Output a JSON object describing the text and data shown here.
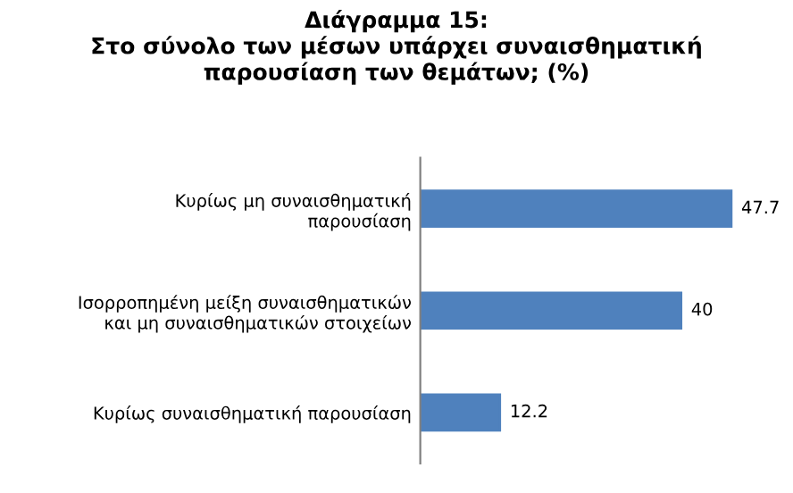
{
  "chart_data": {
    "type": "bar",
    "orientation": "horizontal",
    "title": "Διάγραμμα 15:\nΣτο σύνολο των μέσων υπάρχει συναισθηματική\nπαρουσίαση των θεμάτων; (%)",
    "categories": [
      "Κυρίως μη συναισθηματική\nπαρουσίαση",
      "Ισορροπημένη μείξη συναισθηματικών\nκαι μη συναισθηματικών στοιχείων",
      "Κυρίως συναισθηματική παρουσίαση"
    ],
    "values": [
      47.7,
      40,
      12.2
    ],
    "color": "#4f81bd",
    "data_labels": true,
    "grid": false,
    "legend": false
  }
}
